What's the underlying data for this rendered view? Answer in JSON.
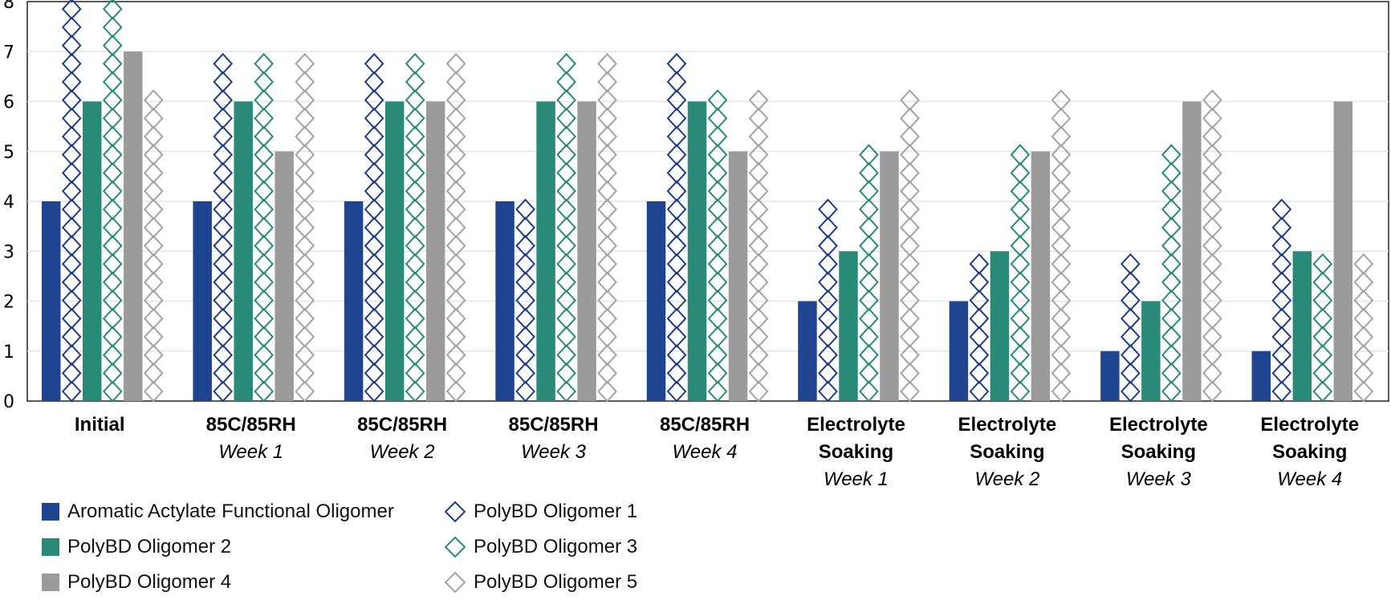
{
  "chart_data": {
    "type": "bar",
    "categories": [
      {
        "main": [
          "Initial"
        ],
        "sub": ""
      },
      {
        "main": [
          "85C/85RH"
        ],
        "sub": "Week 1"
      },
      {
        "main": [
          "85C/85RH"
        ],
        "sub": "Week 2"
      },
      {
        "main": [
          "85C/85RH"
        ],
        "sub": "Week 3"
      },
      {
        "main": [
          "85C/85RH"
        ],
        "sub": "Week 4"
      },
      {
        "main": [
          "Electrolyte",
          "Soaking"
        ],
        "sub": "Week 1"
      },
      {
        "main": [
          "Electrolyte",
          "Soaking"
        ],
        "sub": "Week 2"
      },
      {
        "main": [
          "Electrolyte",
          "Soaking"
        ],
        "sub": "Week 3"
      },
      {
        "main": [
          "Electrolyte",
          "Soaking"
        ],
        "sub": "Week 4"
      }
    ],
    "series": [
      {
        "name": "Aromatic Actylate Functional Oligomer",
        "style": "solid",
        "color": "#1f4590",
        "values": [
          4,
          4,
          4,
          4,
          4,
          2,
          2,
          1,
          1
        ]
      },
      {
        "name": "PolyBD Oligomer 1",
        "style": "diamond",
        "color": "#1f3c88",
        "values": [
          8,
          7,
          7,
          4,
          7,
          4,
          3,
          3,
          4
        ]
      },
      {
        "name": "PolyBD Oligomer 2",
        "style": "solid",
        "color": "#2a8a78",
        "values": [
          6,
          6,
          6,
          6,
          6,
          3,
          3,
          2,
          3
        ]
      },
      {
        "name": "PolyBD Oligomer 3",
        "style": "diamond",
        "color": "#2a8a78",
        "values": [
          8,
          7,
          7,
          7,
          6,
          5,
          5,
          5,
          3
        ]
      },
      {
        "name": "PolyBD Oligomer 4",
        "style": "solid",
        "color": "#9b9b9b",
        "values": [
          7,
          5,
          6,
          6,
          5,
          5,
          5,
          6,
          6
        ]
      },
      {
        "name": "PolyBD Oligomer 5",
        "style": "diamond",
        "color": "#a3a3a3",
        "values": [
          6,
          7,
          7,
          7,
          6,
          6,
          6,
          6,
          3
        ]
      }
    ],
    "y_ticks": [
      "0",
      "1",
      "2",
      "3",
      "4",
      "5",
      "6",
      "7",
      "8"
    ],
    "ylim": [
      0,
      8
    ],
    "grid": true,
    "legend_position": "bottom-left"
  },
  "legend": {
    "items": [
      {
        "label": "Aromatic Actylate Functional Oligomer",
        "style": "solid",
        "color": "#1f4590"
      },
      {
        "label": "PolyBD Oligomer 1",
        "style": "diamond",
        "color": "#1f3c88"
      },
      {
        "label": "PolyBD Oligomer 2",
        "style": "solid",
        "color": "#2a8a78"
      },
      {
        "label": "PolyBD Oligomer 3",
        "style": "diamond",
        "color": "#2a8a78"
      },
      {
        "label": "PolyBD Oligomer 4",
        "style": "solid",
        "color": "#9b9b9b"
      },
      {
        "label": "PolyBD Oligomer 5",
        "style": "diamond",
        "color": "#a3a3a3"
      }
    ]
  }
}
